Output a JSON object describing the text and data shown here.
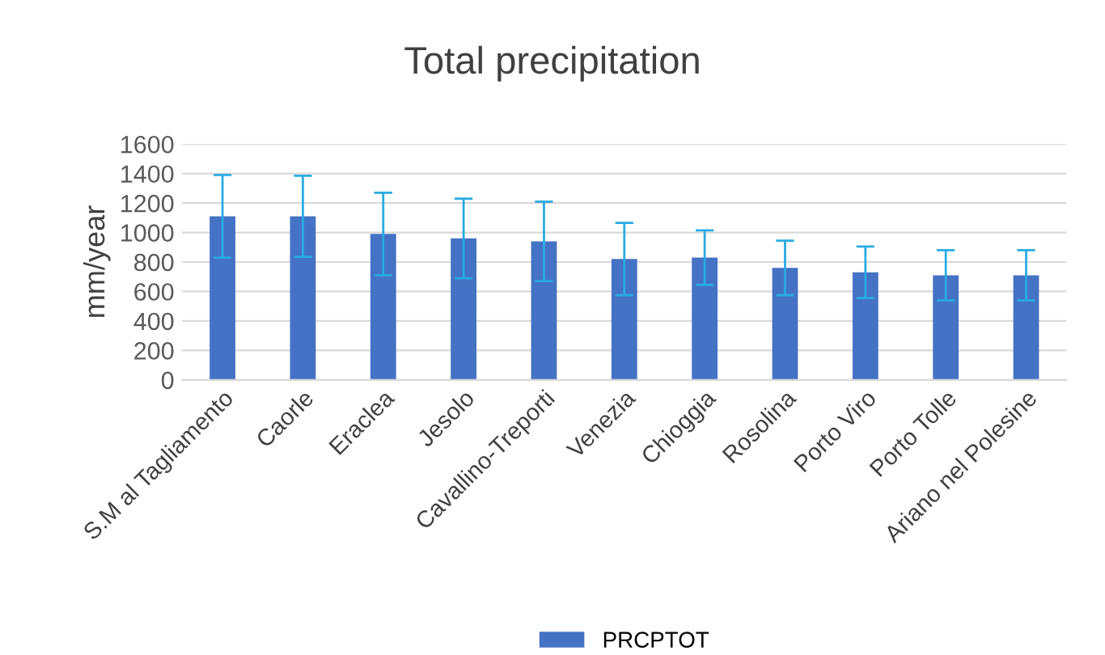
{
  "chart_data": {
    "type": "bar",
    "title": "Total precipitation",
    "ylabel": "mm/year",
    "categories": [
      "S.M al Tagliamento",
      "Caorle",
      "Eraclea",
      "Jesolo",
      "Cavallino-Treporti",
      "Venezia",
      "Chioggia",
      "Rosolina",
      "Porto Viro",
      "Porto Tolle",
      "Ariano nel Polesine"
    ],
    "series": [
      {
        "name": "PRCPTOT",
        "color": "#4472c4",
        "values": [
          1110,
          1110,
          990,
          960,
          940,
          820,
          830,
          760,
          730,
          710,
          710
        ],
        "errors": [
          280,
          275,
          280,
          270,
          270,
          245,
          185,
          185,
          175,
          170,
          170
        ]
      }
    ],
    "ylim": [
      0,
      1600
    ],
    "yticks": [
      0,
      200,
      400,
      600,
      800,
      1000,
      1200,
      1400,
      1600
    ],
    "grid": "y",
    "legend": "bottom"
  }
}
